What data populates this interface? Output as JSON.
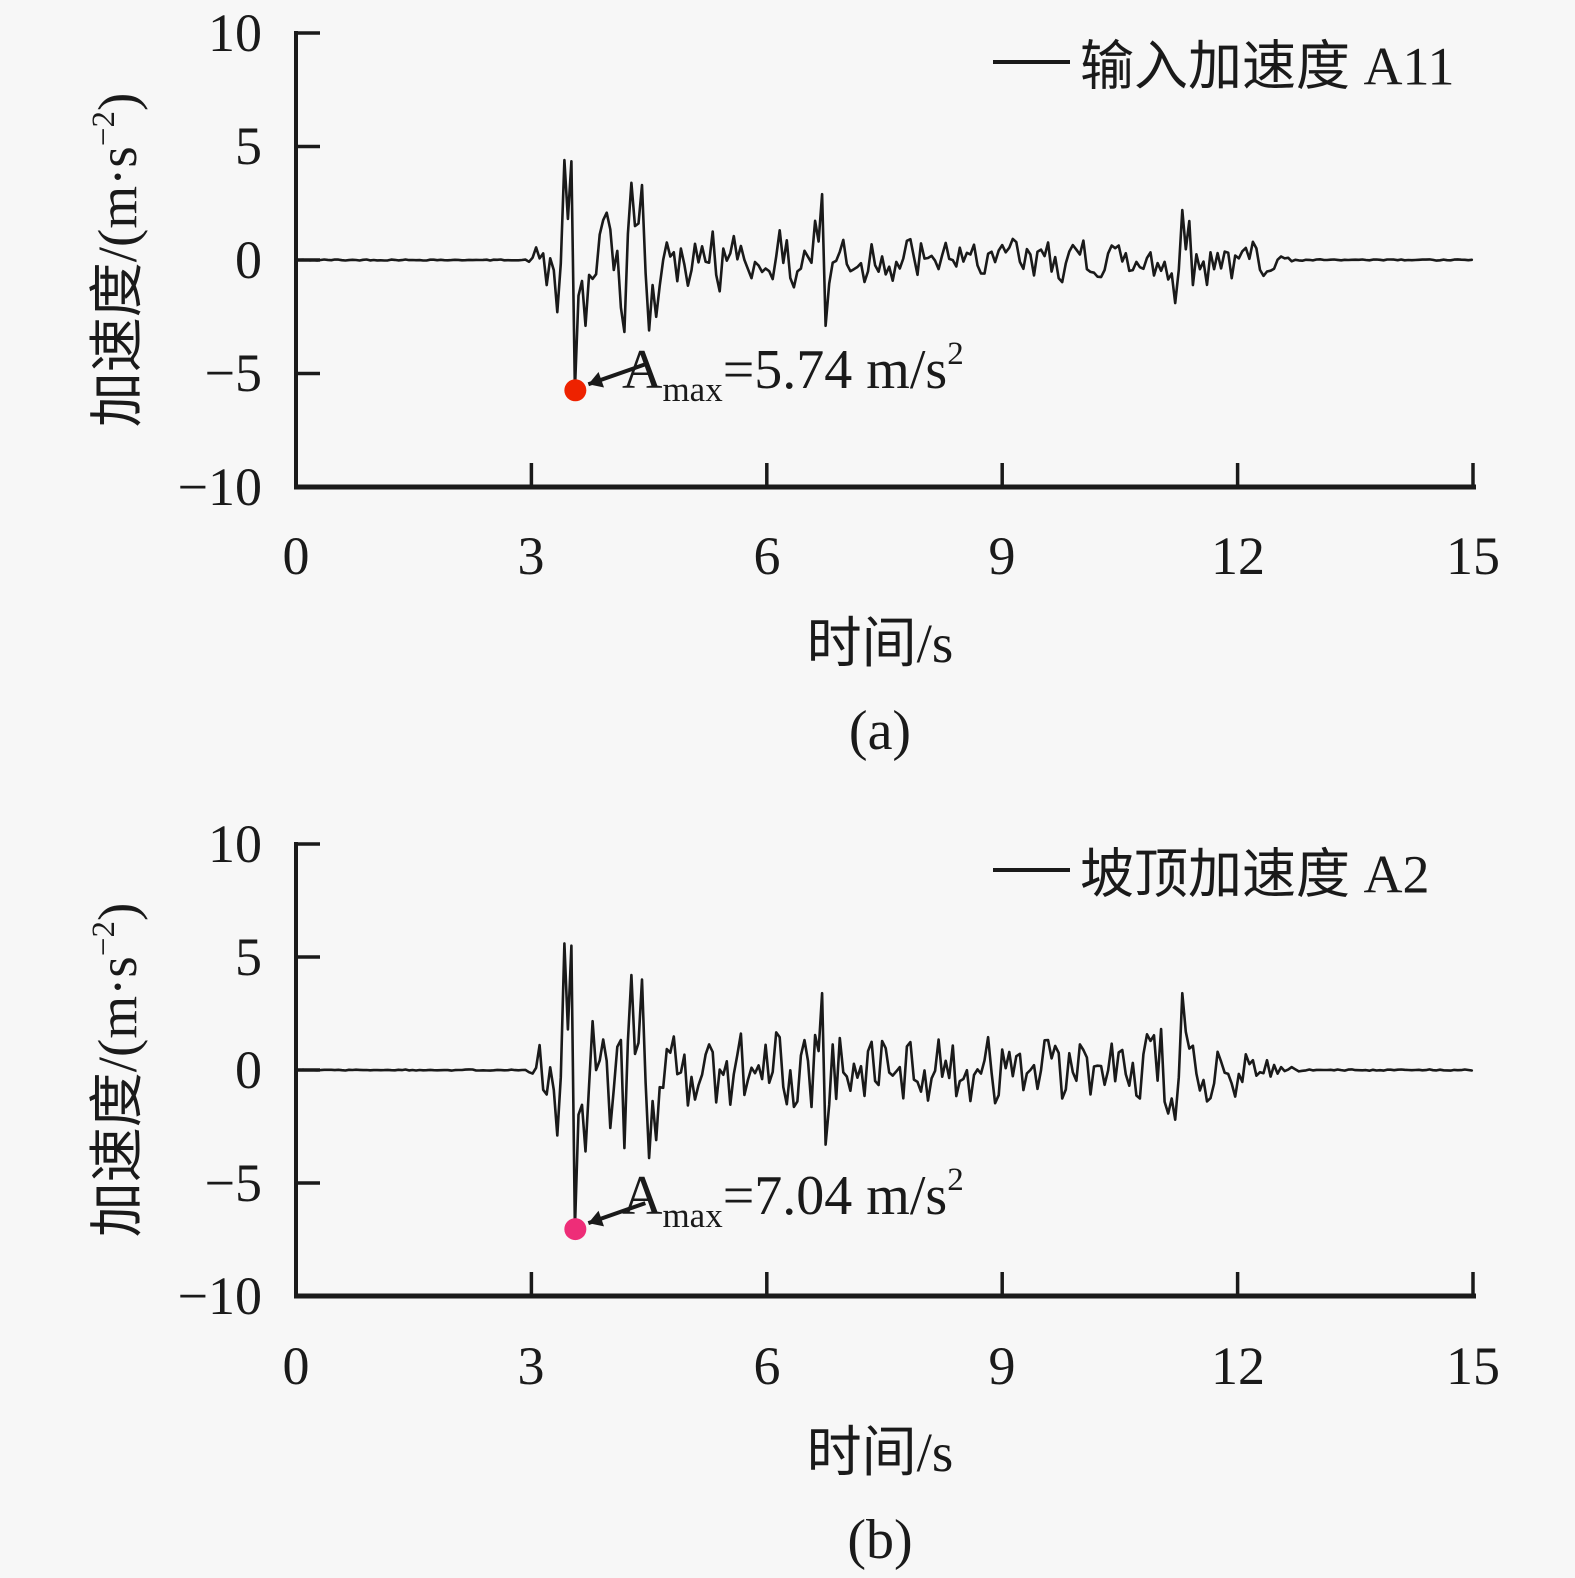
{
  "page": {
    "background": "#f7f7f7",
    "ink": "#1a1a1a"
  },
  "chart_data": [
    {
      "type": "line",
      "subfig_label": "(a)",
      "legend": {
        "label": "输入加速度 A11",
        "position": "top-right",
        "line_color": "#1a1a1a"
      },
      "xlabel": "时间/s",
      "ylabel": "加速度/(m·s⁻²)",
      "ylabel_parts": {
        "pre": "加速度/(m·s",
        "sup": "−2",
        "post": ")"
      },
      "xlim": [
        0,
        15
      ],
      "ylim": [
        -10,
        10
      ],
      "xtick_values": [
        0,
        3,
        6,
        9,
        12,
        15
      ],
      "xtick_labels": [
        "0",
        "3",
        "6",
        "9",
        "12",
        "15"
      ],
      "ytick_values": [
        10,
        5,
        0,
        -5,
        -10
      ],
      "ytick_labels": [
        "10",
        "5",
        "0",
        "−5",
        "−10"
      ],
      "grid": false,
      "annotation": {
        "text": "Amax=5.74 m/s²",
        "prefix": "A",
        "sub": "max",
        "mid": "=5.74 m/s",
        "sup": "2",
        "marker": {
          "t": 3.56,
          "value": -5.74,
          "color": "#ee2200"
        }
      },
      "series": [
        {
          "name": "输入加速度 A11",
          "color": "#1a1a1a",
          "peak_abs_max": 5.74,
          "peak_time_s": 3.56,
          "quiet_before_s": 3.0,
          "quiet_after_s": 12.6,
          "envelope": [
            [
              0,
              0.022
            ],
            [
              2.95,
              0.022
            ],
            [
              3.02,
              0.25
            ],
            [
              3.1,
              0.8
            ],
            [
              3.2,
              1.4
            ],
            [
              3.3,
              2.8
            ],
            [
              3.42,
              4.4
            ],
            [
              3.56,
              4.5
            ],
            [
              3.7,
              2.5
            ],
            [
              3.85,
              1.6
            ],
            [
              4.0,
              2.1
            ],
            [
              4.15,
              2.9
            ],
            [
              4.3,
              3.3
            ],
            [
              4.45,
              3.2
            ],
            [
              4.6,
              2.6
            ],
            [
              4.75,
              1.7
            ],
            [
              4.95,
              1.2
            ],
            [
              5.2,
              1.1
            ],
            [
              5.45,
              1.35
            ],
            [
              5.7,
              1.25
            ],
            [
              5.95,
              1.15
            ],
            [
              6.2,
              1.25
            ],
            [
              6.45,
              1.2
            ],
            [
              6.65,
              2.6
            ],
            [
              6.8,
              2.4
            ],
            [
              6.95,
              1.1
            ],
            [
              7.2,
              0.9
            ],
            [
              7.5,
              1.0
            ],
            [
              7.8,
              0.85
            ],
            [
              8.1,
              1.0
            ],
            [
              8.4,
              0.9
            ],
            [
              8.7,
              1.0
            ],
            [
              9.0,
              1.05
            ],
            [
              9.3,
              0.9
            ],
            [
              9.6,
              1.0
            ],
            [
              9.9,
              0.85
            ],
            [
              10.2,
              0.8
            ],
            [
              10.5,
              0.85
            ],
            [
              10.8,
              1.1
            ],
            [
              11.1,
              1.6
            ],
            [
              11.28,
              2.1
            ],
            [
              11.5,
              1.1
            ],
            [
              11.75,
              0.95
            ],
            [
              12.0,
              0.9
            ],
            [
              12.25,
              0.8
            ],
            [
              12.45,
              0.45
            ],
            [
              12.6,
              0.12
            ],
            [
              12.8,
              0.028
            ],
            [
              15,
              0.025
            ]
          ],
          "peaks": [
            [
              3.42,
              4.4
            ],
            [
              3.51,
              4.35
            ],
            [
              3.56,
              -5.74
            ],
            [
              3.33,
              -2.3
            ],
            [
              3.69,
              -2.9
            ],
            [
              4.28,
              3.4
            ],
            [
              4.42,
              3.3
            ],
            [
              4.51,
              -3.1
            ],
            [
              4.6,
              -2.5
            ],
            [
              6.7,
              2.9
            ],
            [
              6.74,
              -2.9
            ],
            [
              11.28,
              2.2
            ],
            [
              11.21,
              -1.9
            ]
          ]
        }
      ]
    },
    {
      "type": "line",
      "subfig_label": "(b)",
      "legend": {
        "label": "坡顶加速度 A2",
        "position": "top-right",
        "line_color": "#1a1a1a"
      },
      "xlabel": "时间/s",
      "ylabel": "加速度/(m·s⁻²)",
      "ylabel_parts": {
        "pre": "加速度/(m·s",
        "sup": "−2",
        "post": ")"
      },
      "xlim": [
        0,
        15
      ],
      "ylim": [
        -10,
        10
      ],
      "xtick_values": [
        0,
        3,
        6,
        9,
        12,
        15
      ],
      "xtick_labels": [
        "0",
        "3",
        "6",
        "9",
        "12",
        "15"
      ],
      "ytick_values": [
        10,
        5,
        0,
        -5,
        -10
      ],
      "ytick_labels": [
        "10",
        "5",
        "0",
        "−5",
        "−10"
      ],
      "grid": false,
      "annotation": {
        "text": "Amax=7.04 m/s²",
        "prefix": "A",
        "sub": "max",
        "mid": "=7.04 m/s",
        "sup": "2",
        "marker": {
          "t": 3.56,
          "value": -7.04,
          "color": "#ee2d78"
        }
      },
      "series": [
        {
          "name": "坡顶加速度 A2",
          "color": "#1a1a1a",
          "peak_abs_max": 7.04,
          "peak_time_s": 3.56,
          "quiet_before_s": 3.0,
          "quiet_after_s": 12.9,
          "envelope": [
            [
              0,
              0.022
            ],
            [
              2.95,
              0.025
            ],
            [
              3.02,
              0.3
            ],
            [
              3.1,
              1.0
            ],
            [
              3.2,
              1.8
            ],
            [
              3.3,
              3.4
            ],
            [
              3.42,
              5.6
            ],
            [
              3.56,
              5.8
            ],
            [
              3.7,
              3.2
            ],
            [
              3.85,
              2.1
            ],
            [
              4.0,
              2.6
            ],
            [
              4.15,
              3.6
            ],
            [
              4.3,
              4.2
            ],
            [
              4.45,
              4.0
            ],
            [
              4.6,
              3.2
            ],
            [
              4.75,
              2.2
            ],
            [
              4.95,
              1.5
            ],
            [
              5.2,
              1.4
            ],
            [
              5.45,
              1.7
            ],
            [
              5.7,
              1.6
            ],
            [
              5.95,
              1.5
            ],
            [
              6.2,
              1.6
            ],
            [
              6.45,
              1.5
            ],
            [
              6.65,
              3.1
            ],
            [
              6.8,
              2.9
            ],
            [
              6.95,
              1.5
            ],
            [
              7.2,
              1.2
            ],
            [
              7.5,
              1.3
            ],
            [
              7.8,
              1.15
            ],
            [
              8.1,
              1.3
            ],
            [
              8.4,
              1.2
            ],
            [
              8.7,
              1.35
            ],
            [
              9.0,
              1.4
            ],
            [
              9.3,
              1.2
            ],
            [
              9.6,
              1.3
            ],
            [
              9.9,
              1.1
            ],
            [
              10.2,
              1.0
            ],
            [
              10.5,
              1.15
            ],
            [
              10.8,
              1.4
            ],
            [
              11.1,
              2.0
            ],
            [
              11.28,
              3.3
            ],
            [
              11.5,
              1.4
            ],
            [
              11.75,
              1.2
            ],
            [
              12.0,
              1.1
            ],
            [
              12.25,
              1.0
            ],
            [
              12.45,
              0.55
            ],
            [
              12.65,
              0.18
            ],
            [
              12.9,
              0.03
            ],
            [
              15,
              0.025
            ]
          ],
          "peaks": [
            [
              3.42,
              5.6
            ],
            [
              3.51,
              5.5
            ],
            [
              3.56,
              -7.04
            ],
            [
              3.33,
              -2.9
            ],
            [
              3.69,
              -3.6
            ],
            [
              4.28,
              4.2
            ],
            [
              4.42,
              4.0
            ],
            [
              4.51,
              -3.9
            ],
            [
              4.6,
              -3.1
            ],
            [
              6.7,
              3.4
            ],
            [
              6.74,
              -3.3
            ],
            [
              11.28,
              3.4
            ],
            [
              11.21,
              -2.2
            ]
          ]
        }
      ]
    }
  ]
}
